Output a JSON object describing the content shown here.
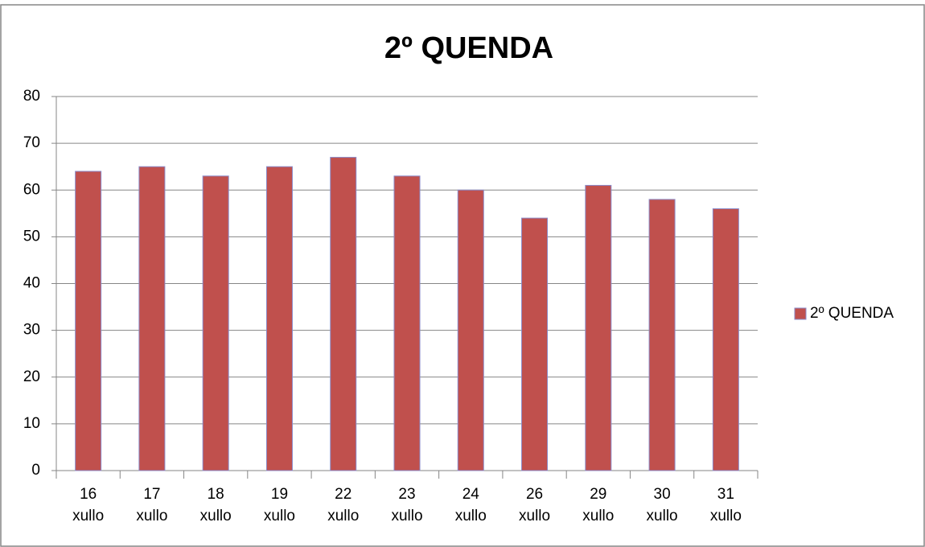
{
  "chart_data": {
    "type": "bar",
    "title": "2º QUENDA",
    "categories": [
      "16 xullo",
      "17 xullo",
      "18 xullo",
      "19 xullo",
      "22 xullo",
      "23 xullo",
      "24 xullo",
      "26 xullo",
      "29 xullo",
      "30 xullo",
      "31 xullo"
    ],
    "series": [
      {
        "name": "2º QUENDA",
        "color": "#c0504d",
        "values": [
          64,
          65,
          63,
          65,
          67,
          63,
          60,
          54,
          61,
          58,
          56
        ]
      }
    ],
    "ylim": [
      0,
      80
    ],
    "yticks": [
      0,
      10,
      20,
      30,
      40,
      50,
      60,
      70,
      80
    ],
    "grid": true,
    "legend": "right"
  }
}
